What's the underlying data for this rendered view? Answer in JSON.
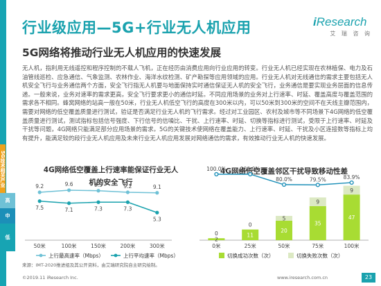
{
  "header": {
    "title": "行业级应用—5G+行业无人机应用",
    "subtitle": "5G网络将推动行业无人机应用的快速发展",
    "logo_i": "i",
    "logo_text": "Research",
    "logo_sub": "艾 瑞 咨 询"
  },
  "sidebar": {
    "items": [
      {
        "label": "5G技术相关产业"
      },
      {
        "label": "高"
      },
      {
        "label": "中"
      },
      {
        "label": "低"
      }
    ]
  },
  "body_text": "无人机，指利用无线遥控和程序控制的不载人飞机，正在经历由消费应用向行业应用的转变。行业无人机已经实现在农林植保、电力及石油管线巡检、应急通信、气象监测、农林作业、海洋水纹检测、矿产勘探等应用领域的应用。行业无人机对无线通信的需求主要包括无人机安全飞行与业务通信两个方面，安全飞行指无人机要与地面保持实时通信保证无人机的安全飞行，业务通信是要实现业务层面的信息传递。一般来说，业务对速率的需求更高，安全飞行要求更小的通信时延。不同应用场景的业务对上行速率、时延、覆盖高度与覆盖范围的需求各不相同。蜂窝网络的站高一般在50米，行业无人机低空飞行的高度在300米以内，可以50米到300米的空间不在天线主瓣范围内，需要对网络的低空覆盖质量进行测试，验证是否满足行业无人机的飞行需求。经过对工业园区、农村及城市等不同场景下4G网络的低空覆盖质量进行测试，测试指标包括信号强度、下行信号的信噪比、干扰、上行速率、时延、切换等指标进行测试，受限于上行速率、时延及干扰等问题，4G网络只能满足部分应用场景的需求。5G的关键技术使网络在覆盖能力、上行速率、时延、干扰及小区连接数等指标上均有提升，能满足较的段行业无人机应用及未来行业无人机应用发展对网络通信的需求，有效推动行业无人机的快速发展。",
  "charts": {
    "left_title": "4G网络低空覆盖上行速率能保证行业无人机的安全飞行",
    "right_title": "4G网络低空覆盖邻区干扰导致移动性差"
  },
  "chart_data": [
    {
      "type": "line",
      "title": "4G网络低空覆盖上行速率能保证行业无人机的安全飞行",
      "categories": [
        "50米",
        "100米",
        "150米",
        "200米",
        "300米"
      ],
      "series": [
        {
          "name": "上行最高速率（Mbps）",
          "values": [
            9.2,
            9.6,
            9.5,
            9.2,
            9.1
          ],
          "color": "#6fc1d6"
        },
        {
          "name": "上行平均速率（Mbps）",
          "values": [
            7.5,
            7.1,
            7.3,
            7.3,
            5.3
          ],
          "color": "#1aa2ae"
        }
      ],
      "ylim": [
        0,
        12
      ]
    },
    {
      "type": "bar",
      "title": "4G网络低空覆盖邻区干扰导致移动性差",
      "categories": [
        "0米",
        "25米",
        "50米",
        "75米",
        "100米"
      ],
      "series": [
        {
          "name": "切换成功次数（次）",
          "values": [
            2,
            11,
            20,
            35,
            47
          ],
          "color": "#a8dc33"
        },
        {
          "name": "切换失败次数（次）",
          "values": [
            0,
            0,
            5,
            9,
            9
          ],
          "color": "#dce9c3"
        }
      ],
      "line": {
        "name": "切换成功率",
        "values": [
          100.0,
          100.0,
          80.0,
          79.5,
          83.9
        ],
        "labels": [
          "100.0%",
          "100.0%",
          "80.0%",
          "79.5%",
          "83.9%"
        ],
        "color": "#1c8fb8"
      },
      "ylim": [
        0,
        60
      ]
    }
  ],
  "footer": {
    "source": "来源：IMT-2020推进组及其公开资料，由艾瑞研究院自主研究绘制。",
    "copyright": "©2019.11 iResearch Inc.",
    "site": "www.iresearch.com.cn",
    "page": "23"
  }
}
